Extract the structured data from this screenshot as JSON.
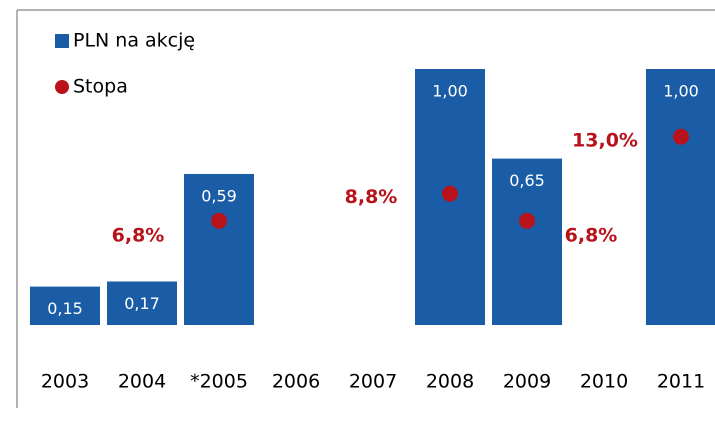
{
  "chart_data": {
    "type": "bar",
    "categories": [
      "2003",
      "2004",
      "*2005",
      "2006",
      "2007",
      "2008",
      "2009",
      "2010",
      "2011"
    ],
    "series": [
      {
        "name": "PLN na akcję",
        "color": "#1a5da6",
        "values": [
          0.15,
          0.17,
          0.59,
          null,
          null,
          1.0,
          0.65,
          null,
          1.0
        ],
        "value_labels": [
          "0,15",
          "0,17",
          "0,59",
          null,
          null,
          "1,00",
          "0,65",
          null,
          "1,00"
        ]
      },
      {
        "name": "Stopa",
        "color": "#b8121b",
        "axis": "y2",
        "values": [
          null,
          null,
          6.8,
          null,
          null,
          8.8,
          6.8,
          null,
          13.0
        ],
        "value_labels": [
          null,
          null,
          "6,8%",
          null,
          null,
          "8,8%",
          "6,8%",
          null,
          "13,0%"
        ]
      }
    ],
    "ylim": [
      0,
      1
    ],
    "y2lim": [
      0,
      18
    ],
    "legend": "top-left"
  }
}
